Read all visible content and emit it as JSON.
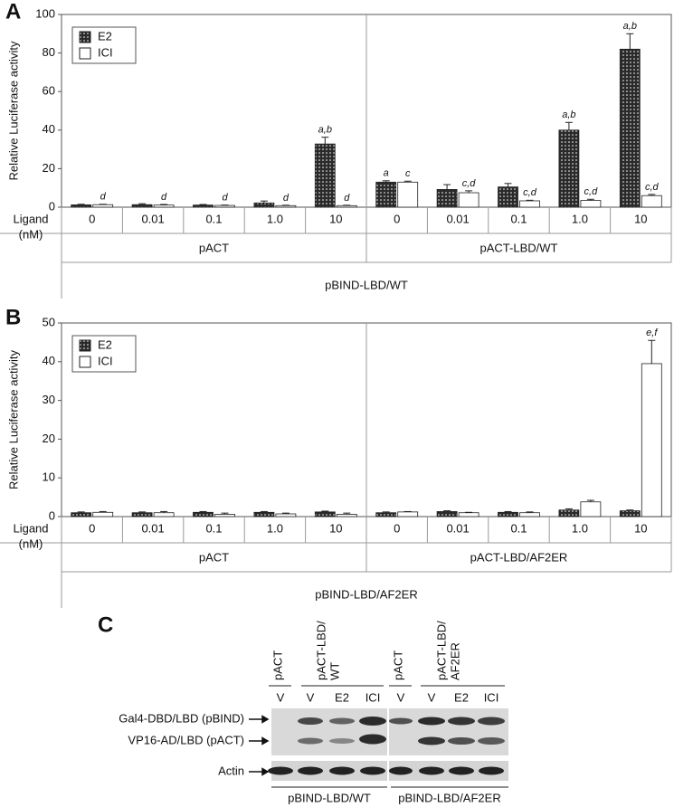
{
  "chart_data": [
    {
      "type": "bar",
      "panel_label": "A",
      "ylabel": "Relative Luciferase activity",
      "ylim": [
        0,
        100
      ],
      "yticks": [
        0,
        20,
        40,
        60,
        80,
        100
      ],
      "x_label": [
        "Ligand",
        "(nM)"
      ],
      "categories": [
        "0",
        "0.01",
        "0.1",
        "1.0",
        "10",
        "0",
        "0.01",
        "0.1",
        "1.0",
        "10"
      ],
      "groups": [
        "pACT",
        "pACT-LBD/WT"
      ],
      "outer_label": "pBIND-LBD/WT",
      "series": [
        {
          "name": "E2",
          "color": "#2a2a2a",
          "values": [
            1.2,
            1.3,
            1.1,
            2.2,
            32.8,
            13,
            9.2,
            10.5,
            40,
            82
          ],
          "errors": [
            0.3,
            0.5,
            0.3,
            1,
            3.5,
            0.7,
            2.5,
            1.8,
            4,
            8
          ],
          "annotations": [
            null,
            null,
            null,
            null,
            "a,b",
            "a",
            null,
            null,
            "a,b",
            "a,b"
          ]
        },
        {
          "name": "ICI",
          "color": "#ffffff",
          "values": [
            1.3,
            1.1,
            0.9,
            0.8,
            0.8,
            13,
            7.5,
            3.3,
            3.5,
            6
          ],
          "errors": [
            0.2,
            0.3,
            0.2,
            0.2,
            0.2,
            0.5,
            1,
            0.3,
            0.6,
            0.6
          ],
          "annotations": [
            "d",
            "d",
            "d",
            "d",
            "d",
            "c",
            "c,d",
            "c,d",
            "c,d",
            "c,d"
          ]
        }
      ],
      "legend": "upper left"
    },
    {
      "type": "bar",
      "panel_label": "B",
      "ylabel": "Relative Luciferase activity",
      "ylim": [
        0,
        50
      ],
      "yticks": [
        0,
        10,
        20,
        30,
        40,
        50
      ],
      "x_label": [
        "Ligand",
        "(nM)"
      ],
      "categories": [
        "0",
        "0.01",
        "0.1",
        "1.0",
        "10",
        "0",
        "0.01",
        "0.1",
        "1.0",
        "10"
      ],
      "groups": [
        "pACT",
        "pACT-LBD/AF2ER"
      ],
      "outer_label": "pBIND-LBD/AF2ER",
      "series": [
        {
          "name": "E2",
          "color": "#2a2a2a",
          "values": [
            1,
            1,
            1.1,
            1.1,
            1.2,
            1,
            1.3,
            1.1,
            1.7,
            1.5
          ],
          "errors": [
            0.2,
            0.2,
            0.2,
            0.2,
            0.2,
            0.2,
            0.2,
            0.2,
            0.3,
            0.2
          ],
          "annotations": [
            null,
            null,
            null,
            null,
            null,
            null,
            null,
            null,
            null,
            null
          ]
        },
        {
          "name": "ICI",
          "color": "#ffffff",
          "values": [
            1.1,
            1,
            0.6,
            0.7,
            0.6,
            1.2,
            1,
            1,
            3.8,
            39.5
          ],
          "errors": [
            0.2,
            0.3,
            0.3,
            0.2,
            0.3,
            0.1,
            0.1,
            0.2,
            0.4,
            6
          ],
          "annotations": [
            null,
            null,
            null,
            null,
            null,
            null,
            null,
            null,
            null,
            "e,f"
          ]
        }
      ],
      "legend": "upper left"
    }
  ],
  "panel_c": {
    "label": "C",
    "headers": [
      [
        "pACT"
      ],
      [
        "pACT-LBD/",
        "WT"
      ],
      [
        "pACT"
      ],
      [
        "pACT-LBD/",
        "AF2ER"
      ]
    ],
    "lanes": [
      "V",
      "V",
      "E2",
      "ICI",
      "V",
      "V",
      "E2",
      "ICI"
    ],
    "rows": [
      "Gal4-DBD/LBD (pBIND)",
      "VP16-AD/LBD (pACT)",
      "Actin"
    ],
    "bottom_groups": [
      "pBIND-LBD/WT",
      "pBIND-LBD/AF2ER"
    ]
  }
}
